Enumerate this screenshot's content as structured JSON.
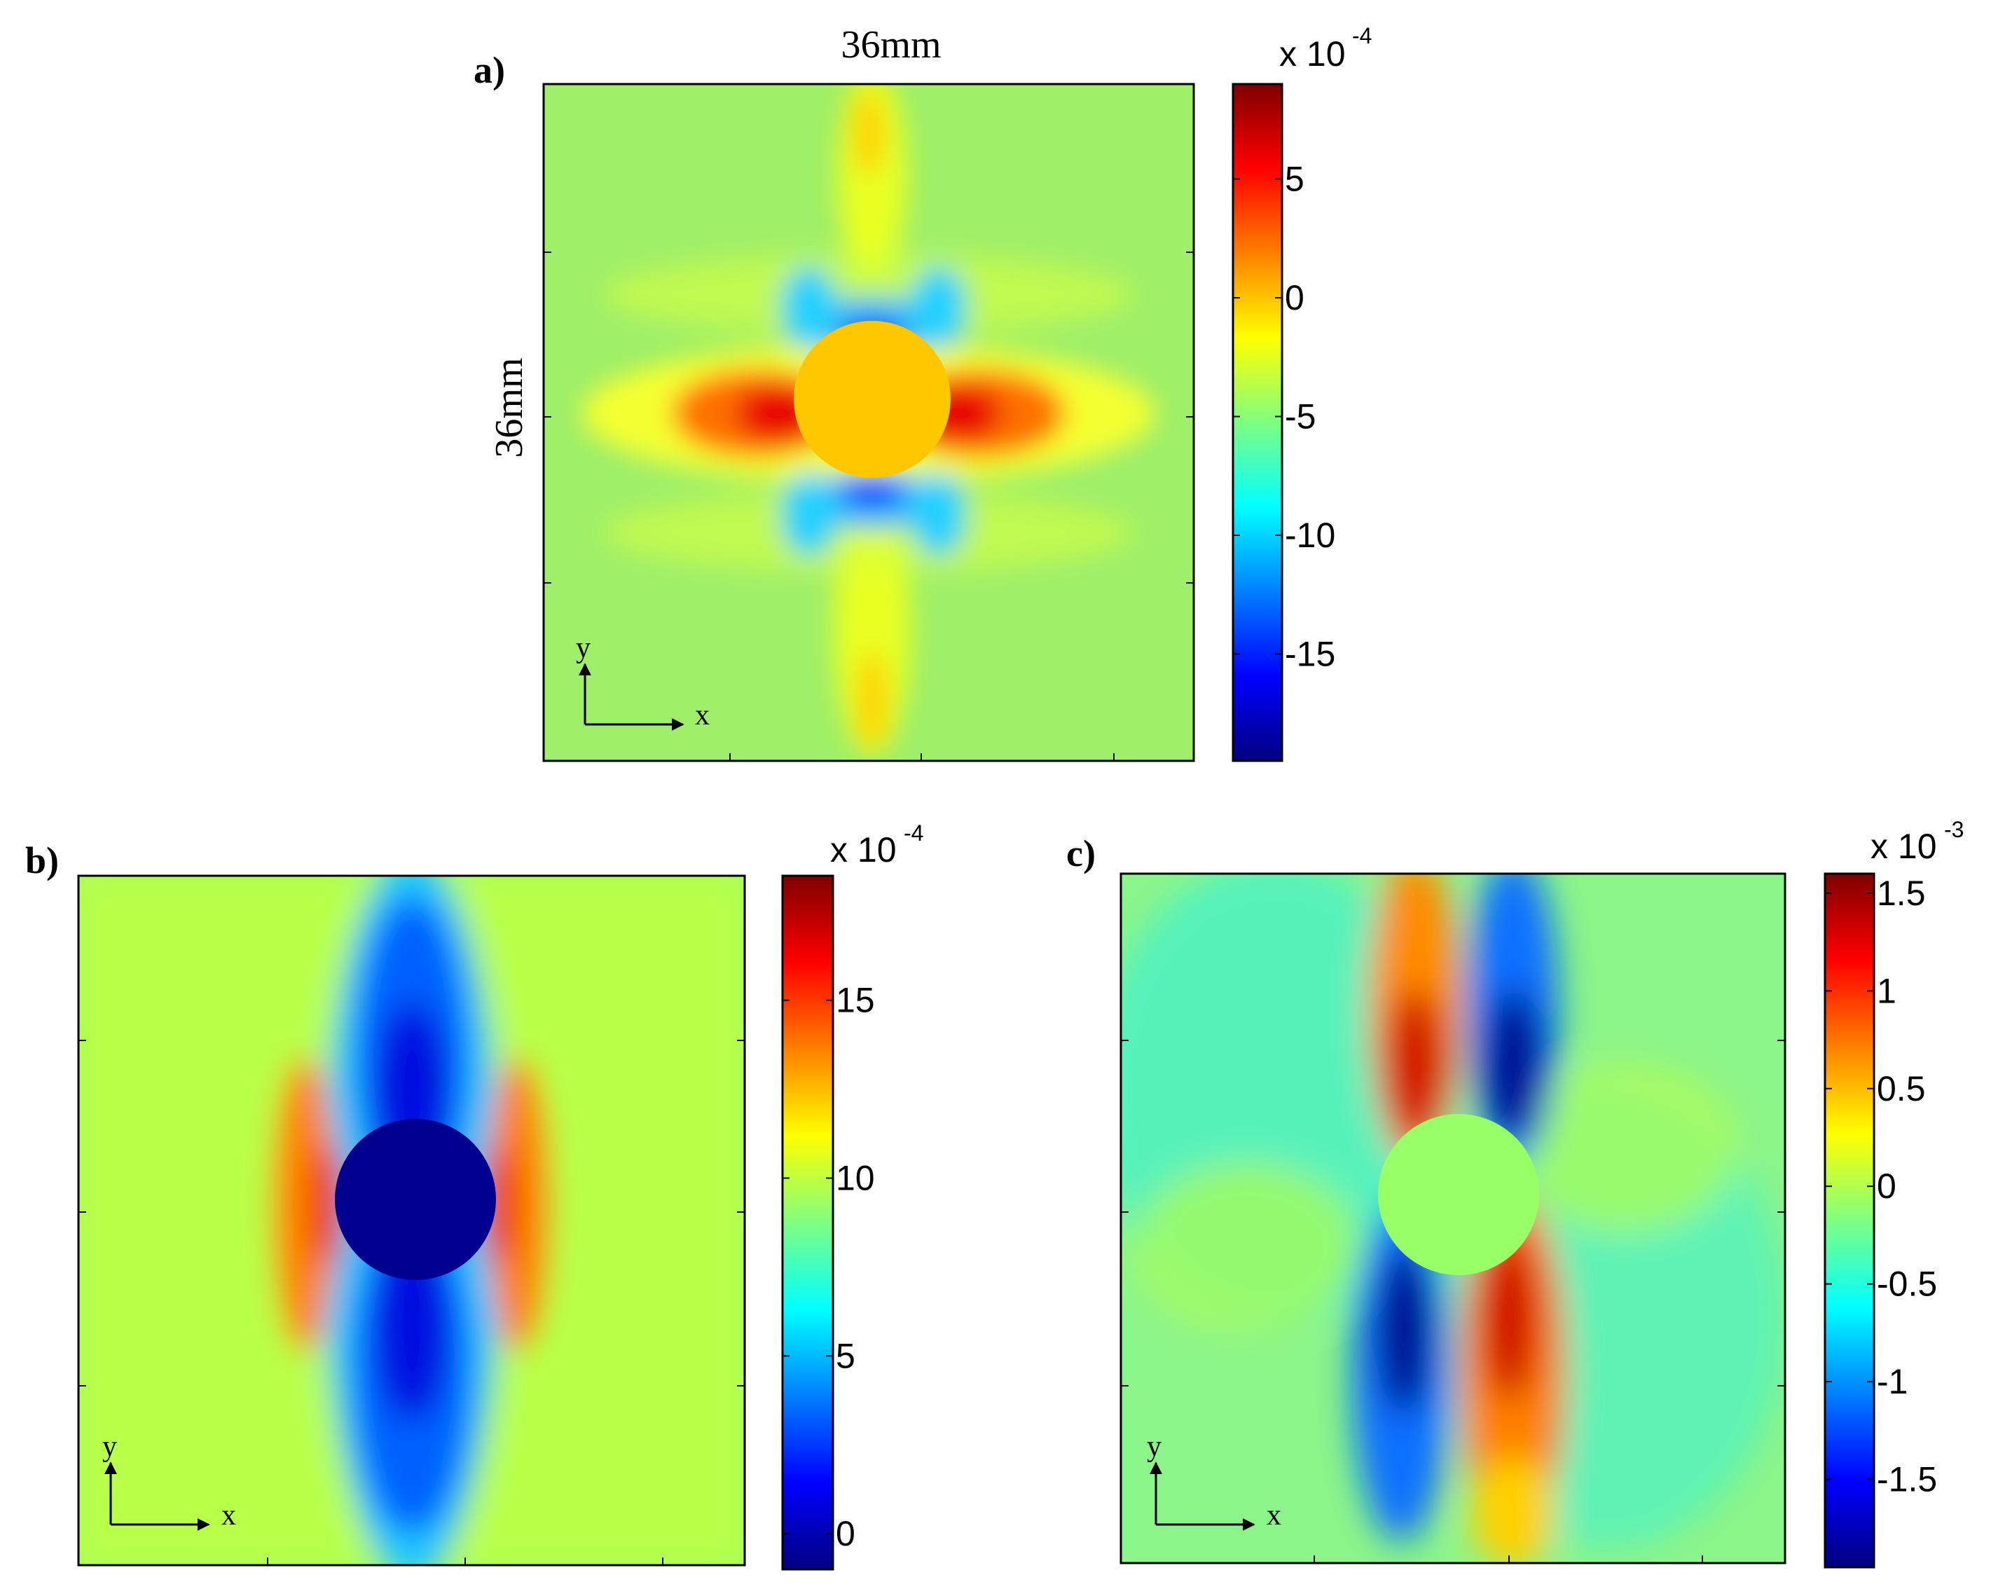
{
  "panels": [
    {
      "id": "a",
      "label": "a)",
      "width_label": "36mm",
      "height_label": "36mm",
      "colorbar": {
        "multiplier_base": "x 10",
        "multiplier_exp": "-4",
        "ticks": [
          "5",
          "0",
          "-5",
          "-10",
          "-15"
        ],
        "tick_values": [
          5,
          0,
          -5,
          -10,
          -15
        ],
        "range": [
          -19.5,
          9
        ]
      },
      "hole_fill_value": 1.5,
      "axis_letters": {
        "y": "y",
        "x": "x"
      }
    },
    {
      "id": "b",
      "label": "b)",
      "colorbar": {
        "multiplier_base": "x 10",
        "multiplier_exp": "-4",
        "ticks": [
          "15",
          "10",
          "5",
          "0"
        ],
        "tick_values": [
          15,
          10,
          5,
          0
        ],
        "range": [
          -1,
          18.5
        ]
      },
      "hole_fill_value": 0,
      "axis_letters": {
        "y": "y",
        "x": "x"
      }
    },
    {
      "id": "c",
      "label": "c)",
      "colorbar": {
        "multiplier_base": "x 10",
        "multiplier_exp": "-3",
        "ticks": [
          "1.5",
          "1",
          "0.5",
          "0",
          "-0.5",
          "-1",
          "-1.5"
        ],
        "tick_values": [
          1.5,
          1,
          0.5,
          0,
          -0.5,
          -1,
          -1.5
        ],
        "range": [
          -1.95,
          1.6
        ]
      },
      "hole_fill_value": -0.3,
      "axis_letters": {
        "y": "y",
        "x": "x"
      }
    }
  ],
  "colormap": "jet",
  "colors": {
    "jet_stops": [
      "#00007f",
      "#0000ff",
      "#007fff",
      "#00ffff",
      "#7fff7f",
      "#ffff00",
      "#ff7f00",
      "#ff0000",
      "#7f0000"
    ]
  }
}
